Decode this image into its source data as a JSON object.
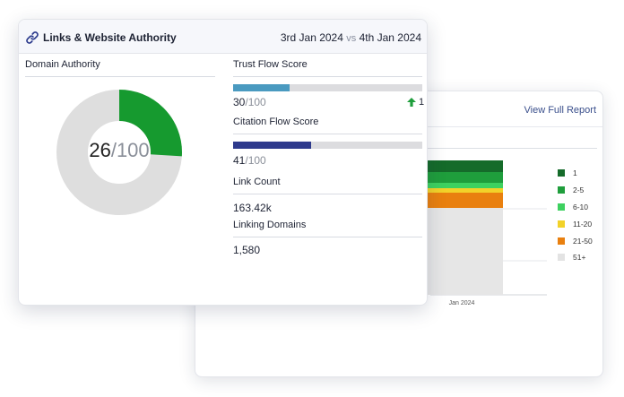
{
  "back_card": {
    "view_full_report": "View Full Report",
    "x_label": "Jan 2024",
    "legend": [
      {
        "label": "1",
        "color": "#156b2a"
      },
      {
        "label": "2-5",
        "color": "#1f9e3c"
      },
      {
        "label": "6-10",
        "color": "#3ed160"
      },
      {
        "label": "11-20",
        "color": "#f2d229"
      },
      {
        "label": "21-50",
        "color": "#e9800f"
      },
      {
        "label": "51+",
        "color": "#e3e3e3"
      }
    ]
  },
  "front_card": {
    "title": "Links & Website Authority",
    "date_start": "3rd Jan 2024",
    "vs": "vs",
    "date_end": "4th Jan 2024",
    "domain_authority": {
      "label": "Domain Authority",
      "value": "26",
      "max": "/100",
      "fraction": 0.26,
      "fill_color": "#169a2f",
      "track_color": "#dedede"
    },
    "trust_flow": {
      "label": "Trust Flow Score",
      "value": "30",
      "max": "/100",
      "fraction": 0.3,
      "color": "#4a9ac0",
      "change": "1",
      "change_color": "#1f9e3c"
    },
    "citation_flow": {
      "label": "Citation Flow Score",
      "value": "41",
      "max": "/100",
      "fraction": 0.41,
      "color": "#2e3a8c"
    },
    "link_count": {
      "label": "Link Count",
      "value": "163.42k"
    },
    "linking_domains": {
      "label": "Linking Domains",
      "value": "1,580"
    }
  }
}
